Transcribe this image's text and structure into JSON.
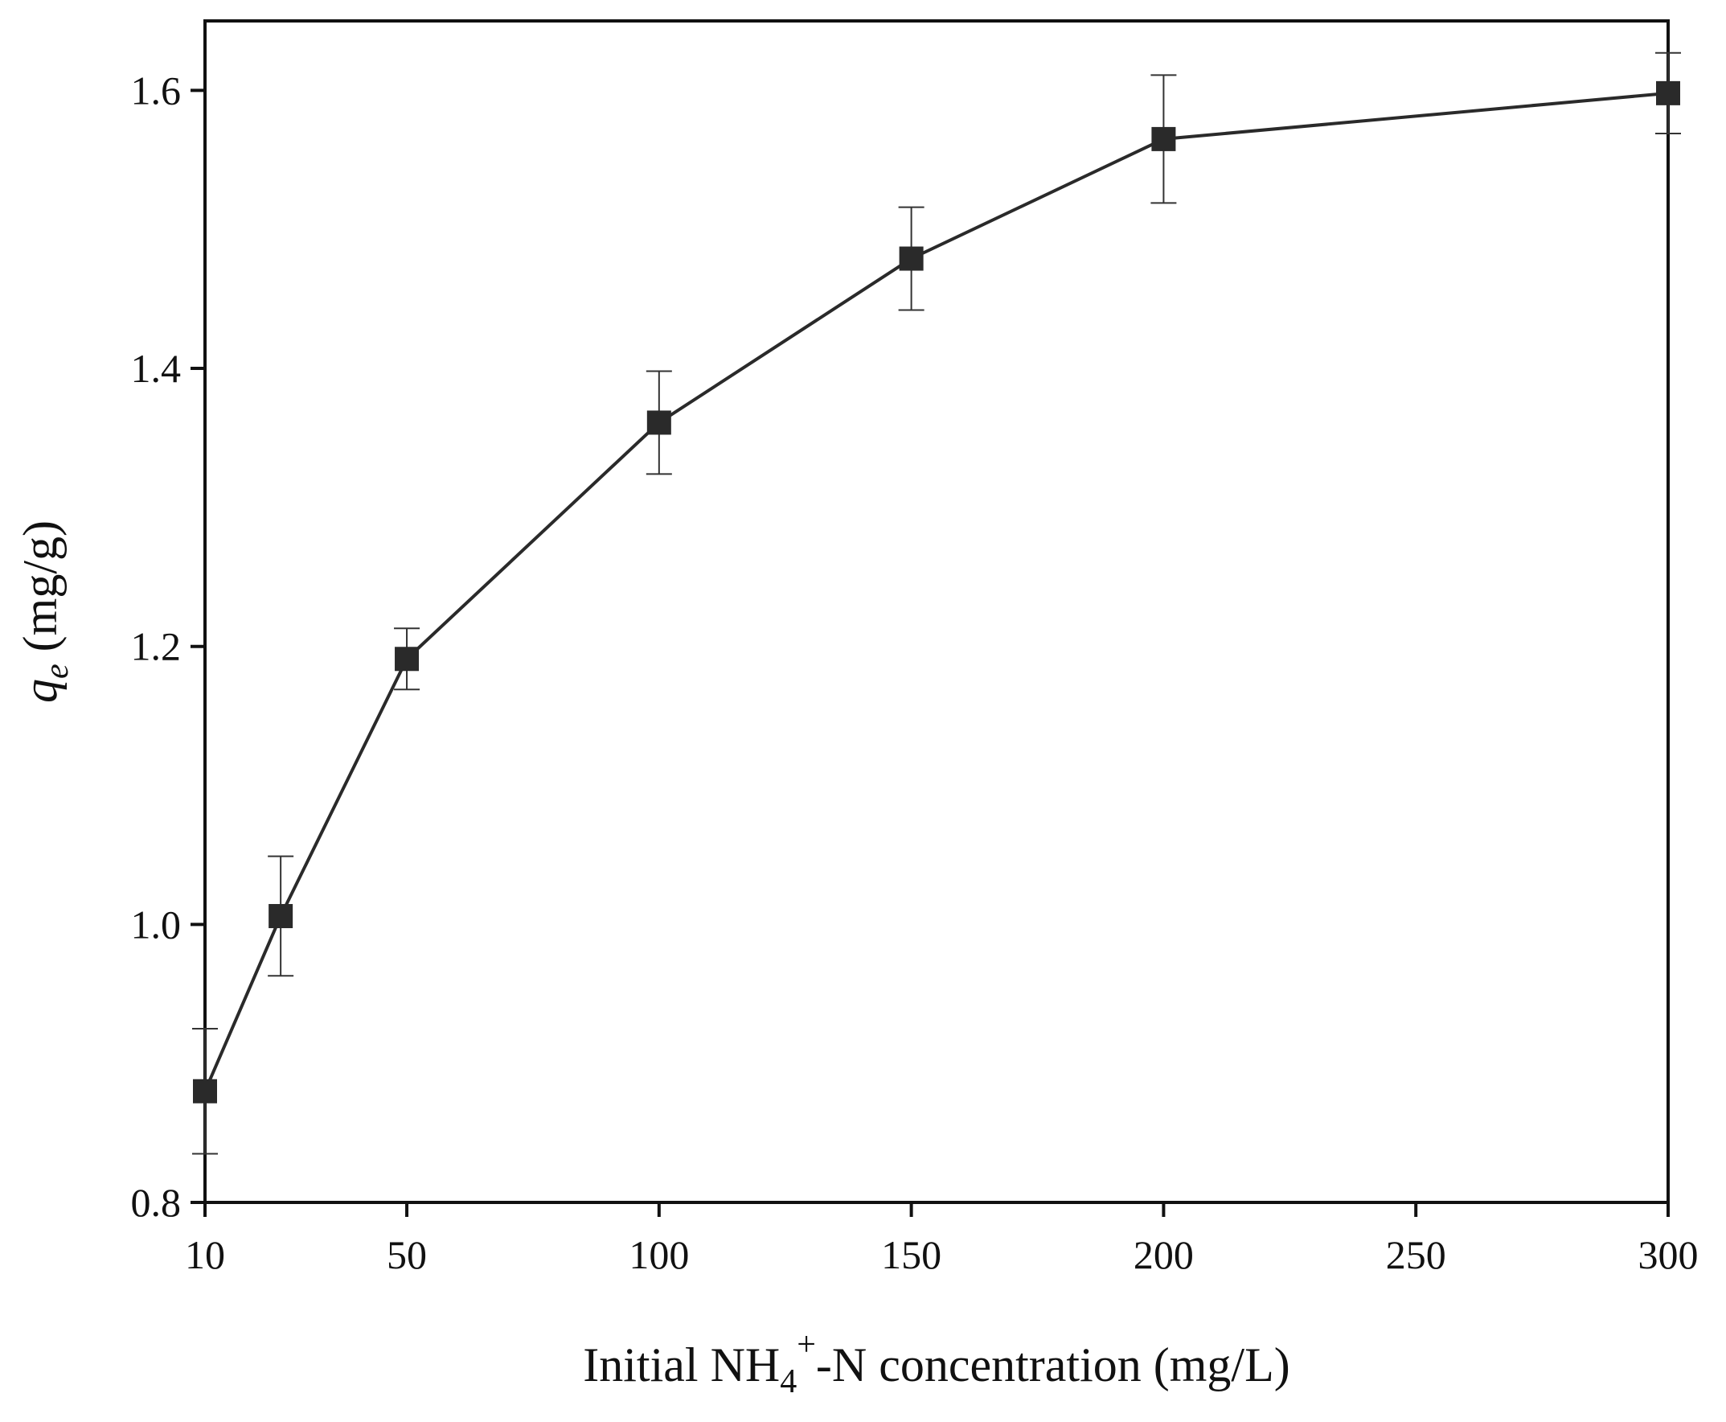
{
  "chart_data": {
    "type": "line",
    "title": "",
    "xlabel": {
      "prefix": "Initial NH",
      "subscript": "4",
      "superscript": "+",
      "suffix": "-N concentration (mg/L)"
    },
    "ylabel": {
      "symbol": "q",
      "subscript": "e",
      "unit": " (mg/g)"
    },
    "xlim": [
      10,
      300
    ],
    "ylim": [
      0.8,
      1.65
    ],
    "xticks": [
      10,
      50,
      100,
      150,
      200,
      250,
      300
    ],
    "xtick_labels": [
      "10",
      "50",
      "100",
      "150",
      "200",
      "250",
      "300"
    ],
    "yticks": [
      0.8,
      1.0,
      1.2,
      1.4,
      1.6
    ],
    "ytick_labels": [
      "0.8",
      "1.0",
      "1.2",
      "1.4",
      "1.6"
    ],
    "grid": false,
    "series": [
      {
        "name": "qe",
        "marker": "square",
        "color": "#2a2a2a",
        "x": [
          10,
          25,
          50,
          100,
          150,
          200,
          300
        ],
        "y": [
          0.88,
          1.006,
          1.191,
          1.361,
          1.479,
          1.565,
          1.598
        ],
        "error": [
          0.045,
          0.043,
          0.022,
          0.037,
          0.037,
          0.046,
          0.029
        ]
      }
    ]
  }
}
